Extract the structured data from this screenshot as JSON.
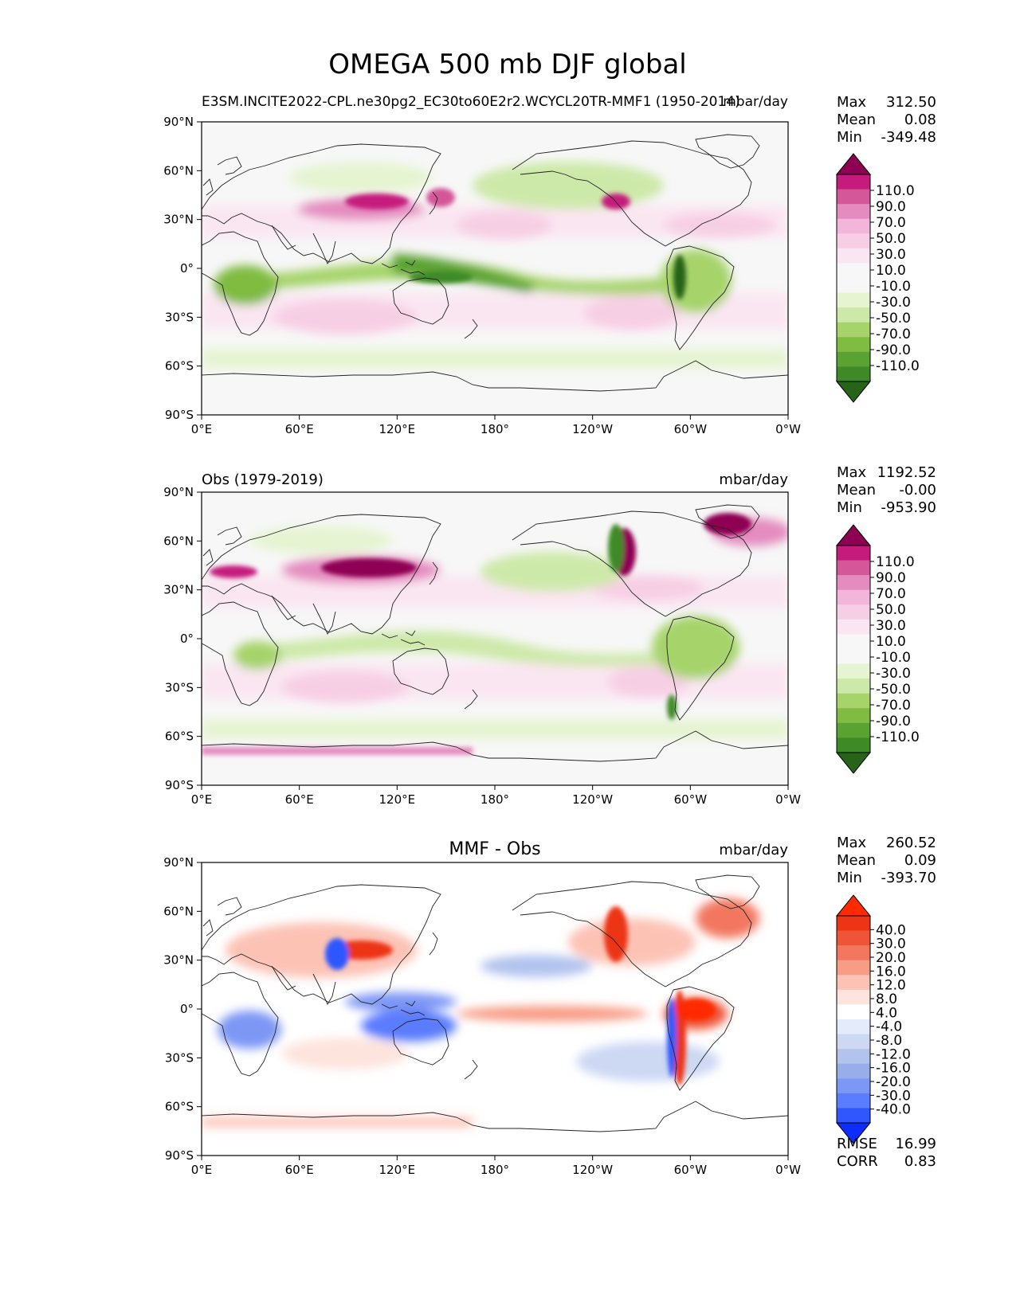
{
  "figure_title": "OMEGA 500 mb DJF global",
  "lat_ticks": [
    "90°N",
    "60°N",
    "30°N",
    "0°",
    "30°S",
    "60°S",
    "90°S"
  ],
  "lon_ticks": [
    "0°E",
    "60°E",
    "120°E",
    "180°",
    "120°W",
    "60°W",
    "0°W"
  ],
  "colors": {
    "pink_green": [
      "#276419",
      "#3d8a27",
      "#5aa232",
      "#7fbc41",
      "#a6d46a",
      "#cde9a9",
      "#e6f4d2",
      "#f7f7f7",
      "#f7f7f7",
      "#fae6f1",
      "#f7cfe4",
      "#f1b6da",
      "#e48cbf",
      "#d35799",
      "#c51b7d",
      "#8e0152"
    ],
    "diff": [
      "#0d2cff",
      "#2f56ff",
      "#5a7cff",
      "#7d97f5",
      "#98aee9",
      "#b2c3ee",
      "#cdd8f3",
      "#e4ebfa",
      "#ffffff",
      "#fde4dd",
      "#fcc3b5",
      "#f89d85",
      "#f3775e",
      "#ee5437",
      "#ec3517",
      "#ff2a00"
    ]
  },
  "panels": [
    {
      "id": "test",
      "left_title": "E3SM.INCITE2022-CPL.ne30pg2_EC30to60E2r2.WCYCL20TR-MMF1 (1950-2014)",
      "center_title": "",
      "units": "mbar/day",
      "stats": [
        {
          "label": "Max",
          "value": "312.50"
        },
        {
          "label": "Mean",
          "value": "0.08"
        },
        {
          "label": "Min",
          "value": "-349.48"
        }
      ],
      "colorbar_levels": [
        "110.0",
        "90.0",
        "70.0",
        "50.0",
        "30.0",
        "10.0",
        "-10.0",
        "-30.0",
        "-50.0",
        "-70.0",
        "-90.0",
        "-110.0"
      ],
      "palette": "pink_green"
    },
    {
      "id": "ref",
      "left_title": "Obs (1979-2019)",
      "center_title": "",
      "units": "mbar/day",
      "stats": [
        {
          "label": "Max",
          "value": "1192.52"
        },
        {
          "label": "Mean",
          "value": "-0.00"
        },
        {
          "label": "Min",
          "value": "-953.90"
        }
      ],
      "colorbar_levels": [
        "110.0",
        "90.0",
        "70.0",
        "50.0",
        "30.0",
        "10.0",
        "-10.0",
        "-30.0",
        "-50.0",
        "-70.0",
        "-90.0",
        "-110.0"
      ],
      "palette": "pink_green"
    },
    {
      "id": "diff",
      "left_title": "",
      "center_title": "MMF - Obs",
      "units": "mbar/day",
      "stats": [
        {
          "label": "Max",
          "value": "260.52"
        },
        {
          "label": "Mean",
          "value": "0.09"
        },
        {
          "label": "Min",
          "value": "-393.70"
        }
      ],
      "colorbar_levels": [
        "40.0",
        "30.0",
        "20.0",
        "16.0",
        "12.0",
        "8.0",
        "4.0",
        "-4.0",
        "-8.0",
        "-12.0",
        "-16.0",
        "-20.0",
        "-30.0",
        "-40.0"
      ],
      "palette": "diff",
      "metrics": [
        {
          "label": "RMSE",
          "value": "16.99"
        },
        {
          "label": "CORR",
          "value": "0.83"
        }
      ]
    }
  ]
}
